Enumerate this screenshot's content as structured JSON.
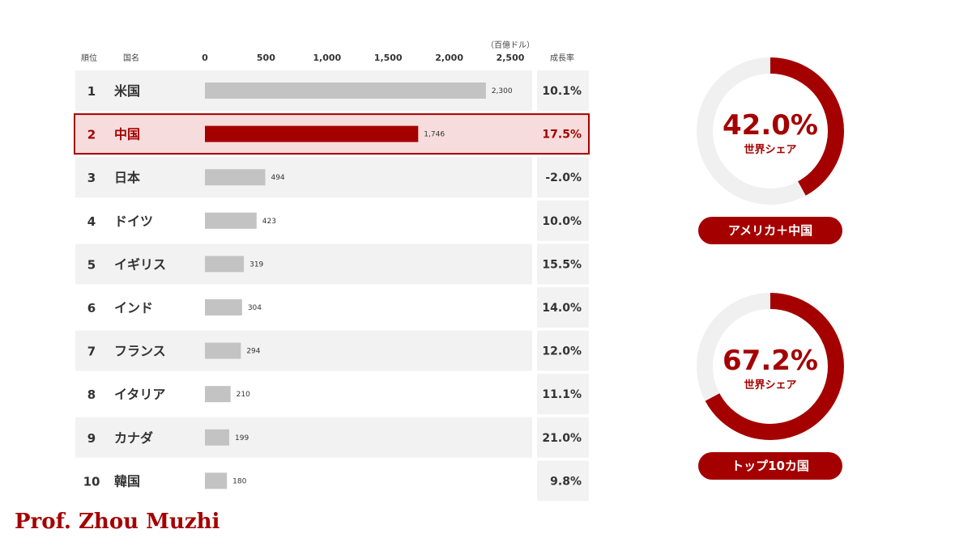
{
  "chart_data": {
    "type": "bar",
    "header": {
      "rank": "順位",
      "country": "国名",
      "growth": "成長率",
      "unit": "（百億ドル）"
    },
    "x_ticks": [
      "0",
      "500",
      "1,000",
      "1,500",
      "2,000",
      "2,500"
    ],
    "xlim": [
      0,
      2500
    ],
    "rows": [
      {
        "rank": "1",
        "country": "米国",
        "value": 2300,
        "value_label": "2,300",
        "growth": "10.1%",
        "highlight": false
      },
      {
        "rank": "2",
        "country": "中国",
        "value": 1746,
        "value_label": "1,746",
        "growth": "17.5%",
        "highlight": true
      },
      {
        "rank": "3",
        "country": "日本",
        "value": 494,
        "value_label": "494",
        "growth": "-2.0%",
        "highlight": false
      },
      {
        "rank": "4",
        "country": "ドイツ",
        "value": 423,
        "value_label": "423",
        "growth": "10.0%",
        "highlight": false
      },
      {
        "rank": "5",
        "country": "イギリス",
        "value": 319,
        "value_label": "319",
        "growth": "15.5%",
        "highlight": false
      },
      {
        "rank": "6",
        "country": "インド",
        "value": 304,
        "value_label": "304",
        "growth": "14.0%",
        "highlight": false
      },
      {
        "rank": "7",
        "country": "フランス",
        "value": 294,
        "value_label": "294",
        "growth": "12.0%",
        "highlight": false
      },
      {
        "rank": "8",
        "country": "イタリア",
        "value": 210,
        "value_label": "210",
        "growth": "11.1%",
        "highlight": false
      },
      {
        "rank": "9",
        "country": "カナダ",
        "value": 199,
        "value_label": "199",
        "growth": "21.0%",
        "highlight": false
      },
      {
        "rank": "10",
        "country": "韓国",
        "value": 180,
        "value_label": "180",
        "growth": "9.8%",
        "highlight": false
      }
    ],
    "donuts": [
      {
        "percent": 42.0,
        "label": "42.0%",
        "sublabel": "世界シェア",
        "caption": "アメリカ＋中国"
      },
      {
        "percent": 67.2,
        "label": "67.2%",
        "sublabel": "世界シェア",
        "caption": "トップ10カ国"
      }
    ]
  },
  "colors": {
    "accent": "#a50000",
    "bar": "#c3c3c3",
    "row_band": "#f2f2f2",
    "highlight_fill": "#f6dcdc",
    "donut_track": "#f0f0f0"
  },
  "author": "Prof. Zhou Muzhi"
}
